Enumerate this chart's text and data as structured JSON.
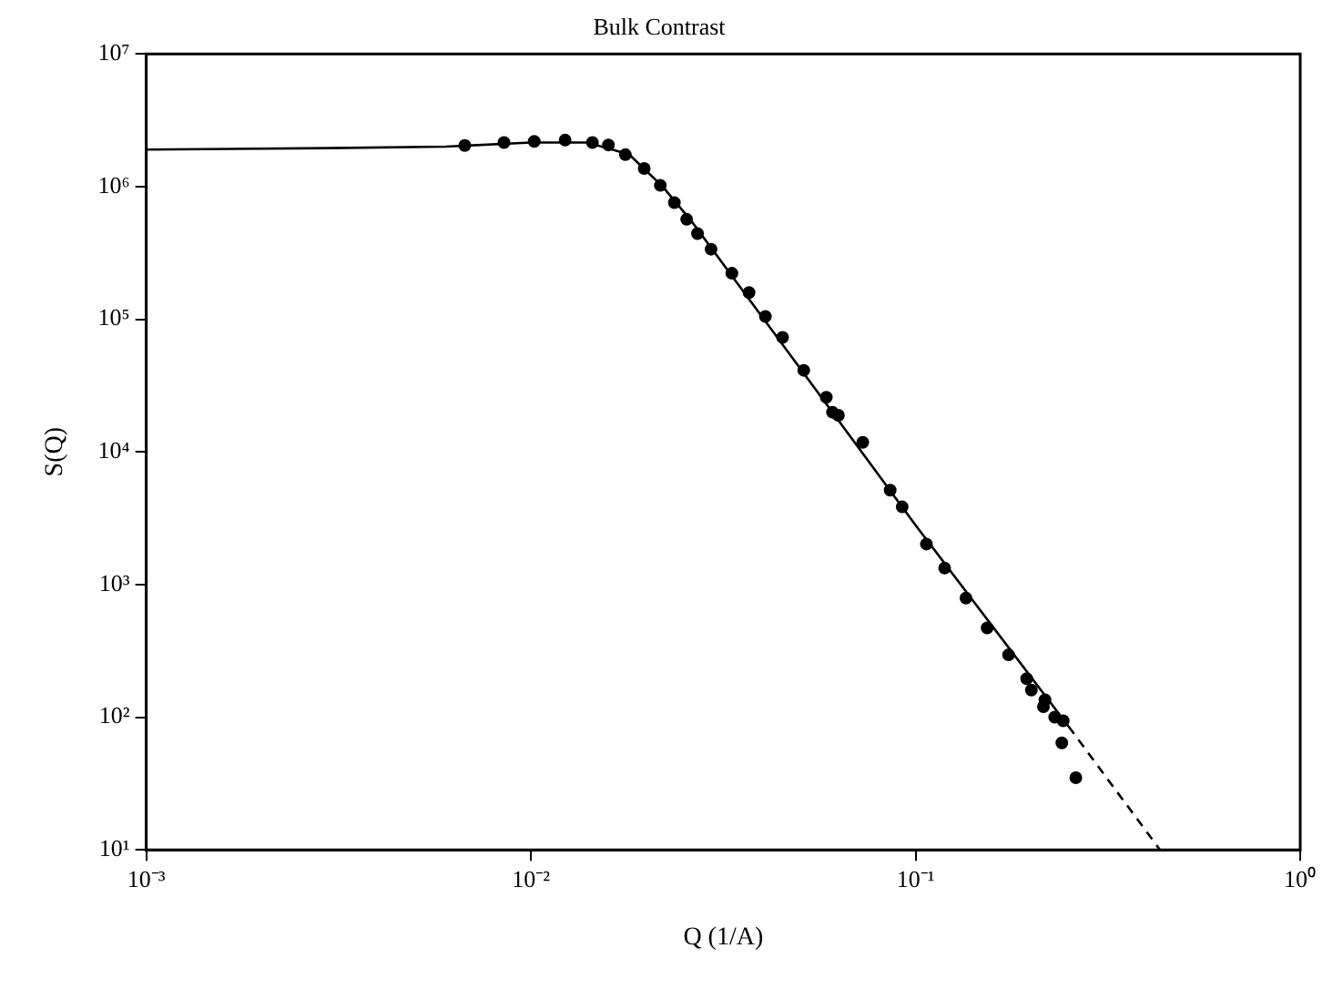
{
  "chart_data": {
    "type": "scatter",
    "title": "Bulk Contrast",
    "xlabel": "Q (1/A)",
    "ylabel": "S(Q)",
    "log": "xy",
    "grid": false,
    "legend": false,
    "xlim": [
      0.001,
      1
    ],
    "ylim": [
      10,
      10000000
    ],
    "xticks": [
      {
        "value": 0.001,
        "label": "10⁻³"
      },
      {
        "value": 0.01,
        "label": "10⁻²"
      },
      {
        "value": 0.1,
        "label": "10⁻¹"
      },
      {
        "value": 1,
        "label": "10⁰"
      }
    ],
    "yticks": [
      {
        "value": 10,
        "label": "10¹"
      },
      {
        "value": 100,
        "label": "10²"
      },
      {
        "value": 1000,
        "label": "10³"
      },
      {
        "value": 10000,
        "label": "10⁴"
      },
      {
        "value": 100000,
        "label": "10⁵"
      },
      {
        "value": 1000000,
        "label": "10⁶"
      },
      {
        "value": 10000000,
        "label": "10⁷"
      }
    ],
    "series": [
      {
        "type": "line",
        "color": "#000000",
        "line_style": "solid",
        "marker": "none",
        "x": [
          0.001,
          0.003,
          0.006,
          0.01,
          0.014,
          0.018,
          0.022,
          0.026,
          0.03,
          0.05,
          0.1,
          0.25
        ],
        "values": [
          1900000,
          1950000,
          2000000,
          2150000,
          2150000,
          1750000,
          1000000,
          560000,
          320000,
          43000,
          2800,
          85
        ]
      },
      {
        "type": "line",
        "color": "#000000",
        "line_style": "dashed",
        "marker": "none",
        "x": [
          0.25,
          0.432
        ],
        "values": [
          85,
          10
        ]
      },
      {
        "color": "#000000",
        "marker": "circle",
        "x": [
          0.00673,
          0.00851,
          0.0102,
          0.01227,
          0.01445,
          0.0159,
          0.0176,
          0.0197,
          0.0217,
          0.0236,
          0.0254,
          0.0271,
          0.0294,
          0.0451,
          0.0512,
          0.0586,
          0.063,
          0.0608,
          0.0729,
          0.2,
          0.215,
          0.23,
          0.242
        ],
        "values": [
          2040000,
          2150000,
          2190000,
          2240000,
          2150000,
          2060000,
          1740000,
          1370000,
          1020000,
          757000,
          566000,
          442000,
          337000,
          73000,
          41200,
          25800,
          18900,
          19900,
          11800,
          160,
          120,
          100,
          94
        ]
      },
      {
        "color": "#000000",
        "marker": "circle",
        "x": [
          0.0333,
          0.0369,
          0.0407,
          0.0859,
          0.0923,
          0.1067,
          0.119,
          0.1352,
          0.1535,
          0.1745,
          0.1945,
          0.217,
          0.24,
          0.261
        ],
        "values": [
          222000,
          159000,
          105000,
          5140,
          3850,
          2020,
          1330,
          791,
          471,
          295,
          195,
          135,
          64,
          35
        ]
      }
    ]
  }
}
